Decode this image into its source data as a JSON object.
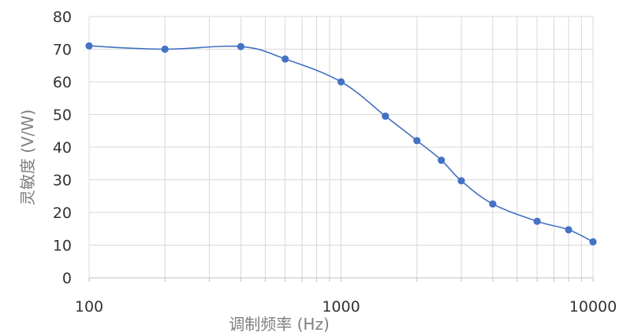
{
  "chart_data": {
    "type": "line",
    "xscale": "log",
    "xlabel": "调制频率 (Hz)",
    "ylabel": "灵敏度 (V/W)",
    "xlim": [
      100,
      10000
    ],
    "ylim": [
      0,
      80
    ],
    "x_tick_labels": [
      "100",
      "1000",
      "10000"
    ],
    "y_tick_labels": [
      "0",
      "10",
      "20",
      "30",
      "40",
      "50",
      "60",
      "70",
      "80"
    ],
    "grid": true,
    "legend": "none",
    "series": [
      {
        "x": [
          100,
          200,
          400,
          600,
          1000,
          1500,
          2000,
          2500,
          3000,
          4000,
          6000,
          8000,
          10000
        ],
        "y": [
          71,
          70,
          70.8,
          67,
          60,
          49.5,
          42,
          36,
          29.7,
          22.6,
          17.3,
          14.7,
          11
        ],
        "color": "#4472c4",
        "marker_color": "#4472c4"
      }
    ]
  }
}
